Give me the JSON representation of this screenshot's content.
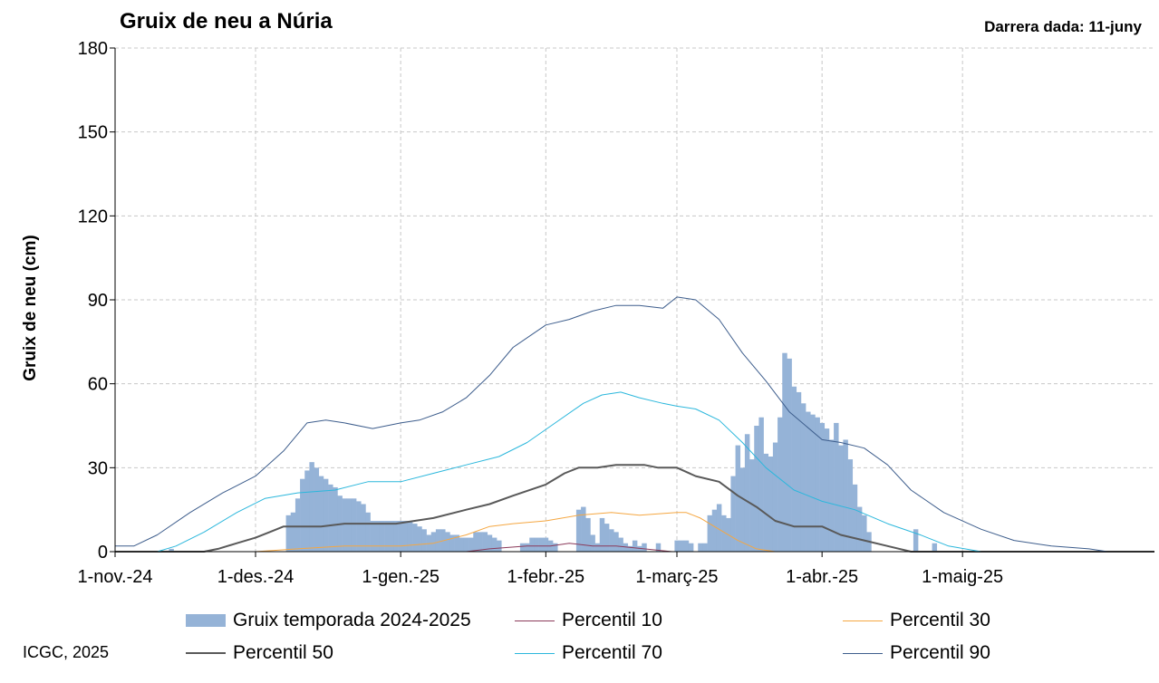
{
  "header": {
    "title": "Gruix de neu a Núria",
    "last_data": "Darrera dada: 11-juny"
  },
  "footer": {
    "credit": "ICGC, 2025"
  },
  "chart_data": {
    "type": "bar",
    "title": "Gruix de neu a Núria",
    "ylabel": "Gruix de neu (cm)",
    "xlabel": "",
    "ylim": [
      0,
      180
    ],
    "yticks": [
      0,
      30,
      60,
      90,
      120,
      150,
      180
    ],
    "xlim": [
      "2024-11-01",
      "2025-06-11"
    ],
    "xticks": [
      {
        "date": "2024-11-01",
        "label": "1-nov.-24"
      },
      {
        "date": "2024-12-01",
        "label": "1-des.-24"
      },
      {
        "date": "2025-01-01",
        "label": "1-gen.-25"
      },
      {
        "date": "2025-02-01",
        "label": "1-febr.-25"
      },
      {
        "date": "2025-03-01",
        "label": "1-març-25"
      },
      {
        "date": "2025-04-01",
        "label": "1-abr.-25"
      },
      {
        "date": "2025-05-01",
        "label": "1-maig-25"
      }
    ],
    "grid": true,
    "legend_position": "bottom",
    "colors": {
      "bars": "#95b3d7",
      "p10": "#8b3a5a",
      "p30": "#f5a742",
      "p50": "#595959",
      "p70": "#2bb7dc",
      "p90": "#3d5d8c"
    },
    "bars": {
      "name": "Gruix temporada 2024-2025",
      "points": [
        [
          "2024-11-13",
          1
        ],
        [
          "2024-12-08",
          13
        ],
        [
          "2024-12-09",
          14
        ],
        [
          "2024-12-10",
          19
        ],
        [
          "2024-12-11",
          26
        ],
        [
          "2024-12-12",
          29
        ],
        [
          "2024-12-13",
          32
        ],
        [
          "2024-12-14",
          30
        ],
        [
          "2024-12-15",
          27
        ],
        [
          "2024-12-16",
          26
        ],
        [
          "2024-12-17",
          24
        ],
        [
          "2024-12-18",
          23
        ],
        [
          "2024-12-19",
          20
        ],
        [
          "2024-12-20",
          19
        ],
        [
          "2024-12-21",
          19
        ],
        [
          "2024-12-22",
          19
        ],
        [
          "2024-12-23",
          18
        ],
        [
          "2024-12-24",
          17
        ],
        [
          "2024-12-25",
          14
        ],
        [
          "2024-12-26",
          11
        ],
        [
          "2024-12-27",
          11
        ],
        [
          "2024-12-28",
          11
        ],
        [
          "2024-12-29",
          11
        ],
        [
          "2024-12-30",
          11
        ],
        [
          "2024-12-31",
          11
        ],
        [
          "2025-01-01",
          11
        ],
        [
          "2025-01-02",
          11
        ],
        [
          "2025-01-03",
          11
        ],
        [
          "2025-01-04",
          10
        ],
        [
          "2025-01-05",
          9
        ],
        [
          "2025-01-06",
          8
        ],
        [
          "2025-01-07",
          6
        ],
        [
          "2025-01-08",
          7
        ],
        [
          "2025-01-09",
          8
        ],
        [
          "2025-01-10",
          8
        ],
        [
          "2025-01-11",
          7
        ],
        [
          "2025-01-12",
          6
        ],
        [
          "2025-01-13",
          6
        ],
        [
          "2025-01-14",
          5
        ],
        [
          "2025-01-15",
          5
        ],
        [
          "2025-01-16",
          5
        ],
        [
          "2025-01-17",
          7
        ],
        [
          "2025-01-18",
          7
        ],
        [
          "2025-01-19",
          7
        ],
        [
          "2025-01-20",
          6
        ],
        [
          "2025-01-21",
          5
        ],
        [
          "2025-01-22",
          4
        ],
        [
          "2025-01-27",
          3
        ],
        [
          "2025-01-28",
          3
        ],
        [
          "2025-01-29",
          5
        ],
        [
          "2025-01-30",
          5
        ],
        [
          "2025-01-31",
          5
        ],
        [
          "2025-02-01",
          5
        ],
        [
          "2025-02-02",
          4
        ],
        [
          "2025-02-03",
          3
        ],
        [
          "2025-02-08",
          15
        ],
        [
          "2025-02-09",
          16
        ],
        [
          "2025-02-10",
          12
        ],
        [
          "2025-02-11",
          6
        ],
        [
          "2025-02-12",
          3
        ],
        [
          "2025-02-13",
          12
        ],
        [
          "2025-02-14",
          10
        ],
        [
          "2025-02-15",
          8
        ],
        [
          "2025-02-16",
          7
        ],
        [
          "2025-02-17",
          5
        ],
        [
          "2025-02-18",
          3
        ],
        [
          "2025-02-19",
          2
        ],
        [
          "2025-02-20",
          4
        ],
        [
          "2025-02-21",
          2
        ],
        [
          "2025-02-22",
          3
        ],
        [
          "2025-02-25",
          3
        ],
        [
          "2025-03-01",
          4
        ],
        [
          "2025-03-02",
          4
        ],
        [
          "2025-03-03",
          4
        ],
        [
          "2025-03-04",
          3
        ],
        [
          "2025-03-06",
          3
        ],
        [
          "2025-03-07",
          3
        ],
        [
          "2025-03-08",
          13
        ],
        [
          "2025-03-09",
          15
        ],
        [
          "2025-03-10",
          17
        ],
        [
          "2025-03-11",
          13
        ],
        [
          "2025-03-12",
          12
        ],
        [
          "2025-03-13",
          27
        ],
        [
          "2025-03-14",
          38
        ],
        [
          "2025-03-15",
          30
        ],
        [
          "2025-03-16",
          42
        ],
        [
          "2025-03-17",
          33
        ],
        [
          "2025-03-18",
          45
        ],
        [
          "2025-03-19",
          48
        ],
        [
          "2025-03-20",
          35
        ],
        [
          "2025-03-21",
          34
        ],
        [
          "2025-03-22",
          39
        ],
        [
          "2025-03-23",
          48
        ],
        [
          "2025-03-24",
          71
        ],
        [
          "2025-03-25",
          69
        ],
        [
          "2025-03-26",
          59
        ],
        [
          "2025-03-27",
          57
        ],
        [
          "2025-03-28",
          53
        ],
        [
          "2025-03-29",
          50
        ],
        [
          "2025-03-30",
          49
        ],
        [
          "2025-03-31",
          48
        ],
        [
          "2025-04-01",
          46
        ],
        [
          "2025-04-02",
          44
        ],
        [
          "2025-04-03",
          40
        ],
        [
          "2025-04-04",
          46
        ],
        [
          "2025-04-05",
          38
        ],
        [
          "2025-04-06",
          40
        ],
        [
          "2025-04-07",
          33
        ],
        [
          "2025-04-08",
          24
        ],
        [
          "2025-04-09",
          16
        ],
        [
          "2025-04-10",
          13
        ],
        [
          "2025-04-11",
          7
        ],
        [
          "2025-04-21",
          8
        ],
        [
          "2025-04-25",
          3
        ]
      ]
    },
    "series": [
      {
        "name": "Percentil 10",
        "key": "p10",
        "points": [
          [
            "2024-11-01",
            0
          ],
          [
            "2025-01-15",
            0
          ],
          [
            "2025-01-20",
            1
          ],
          [
            "2025-01-28",
            2
          ],
          [
            "2025-02-02",
            2
          ],
          [
            "2025-02-06",
            3
          ],
          [
            "2025-02-11",
            2
          ],
          [
            "2025-02-16",
            2
          ],
          [
            "2025-02-22",
            1
          ],
          [
            "2025-02-28",
            0
          ],
          [
            "2025-06-11",
            0
          ]
        ]
      },
      {
        "name": "Percentil 30",
        "key": "p30",
        "points": [
          [
            "2024-11-01",
            0
          ],
          [
            "2024-12-01",
            0
          ],
          [
            "2024-12-10",
            1
          ],
          [
            "2024-12-20",
            2
          ],
          [
            "2025-01-01",
            2
          ],
          [
            "2025-01-08",
            3
          ],
          [
            "2025-01-15",
            6
          ],
          [
            "2025-01-20",
            9
          ],
          [
            "2025-01-25",
            10
          ],
          [
            "2025-02-01",
            11
          ],
          [
            "2025-02-08",
            13
          ],
          [
            "2025-02-15",
            14
          ],
          [
            "2025-02-21",
            13
          ],
          [
            "2025-03-01",
            14
          ],
          [
            "2025-03-03",
            14
          ],
          [
            "2025-03-06",
            12
          ],
          [
            "2025-03-10",
            8
          ],
          [
            "2025-03-14",
            4
          ],
          [
            "2025-03-18",
            1
          ],
          [
            "2025-03-22",
            0
          ],
          [
            "2025-06-11",
            0
          ]
        ]
      },
      {
        "name": "Percentil 50",
        "key": "p50",
        "points": [
          [
            "2024-11-01",
            0
          ],
          [
            "2024-11-20",
            0
          ],
          [
            "2024-11-23",
            1
          ],
          [
            "2024-11-27",
            3
          ],
          [
            "2024-12-01",
            5
          ],
          [
            "2024-12-04",
            7
          ],
          [
            "2024-12-07",
            9
          ],
          [
            "2024-12-15",
            9
          ],
          [
            "2024-12-20",
            10
          ],
          [
            "2024-12-31",
            10
          ],
          [
            "2025-01-08",
            12
          ],
          [
            "2025-01-15",
            15
          ],
          [
            "2025-01-20",
            17
          ],
          [
            "2025-01-25",
            20
          ],
          [
            "2025-02-01",
            24
          ],
          [
            "2025-02-05",
            28
          ],
          [
            "2025-02-08",
            30
          ],
          [
            "2025-02-12",
            30
          ],
          [
            "2025-02-16",
            31
          ],
          [
            "2025-02-22",
            31
          ],
          [
            "2025-02-25",
            30
          ],
          [
            "2025-03-01",
            30
          ],
          [
            "2025-03-05",
            27
          ],
          [
            "2025-03-10",
            25
          ],
          [
            "2025-03-14",
            20
          ],
          [
            "2025-03-18",
            16
          ],
          [
            "2025-03-22",
            11
          ],
          [
            "2025-03-26",
            9
          ],
          [
            "2025-04-01",
            9
          ],
          [
            "2025-04-05",
            6
          ],
          [
            "2025-04-10",
            4
          ],
          [
            "2025-04-15",
            2
          ],
          [
            "2025-04-20",
            0
          ],
          [
            "2025-06-11",
            0
          ]
        ]
      },
      {
        "name": "Percentil 70",
        "key": "p70",
        "points": [
          [
            "2024-11-01",
            0
          ],
          [
            "2024-11-10",
            0
          ],
          [
            "2024-11-14",
            2
          ],
          [
            "2024-11-20",
            7
          ],
          [
            "2024-11-27",
            14
          ],
          [
            "2024-12-03",
            19
          ],
          [
            "2024-12-10",
            21
          ],
          [
            "2024-12-18",
            22
          ],
          [
            "2024-12-25",
            25
          ],
          [
            "2025-01-01",
            25
          ],
          [
            "2025-01-08",
            28
          ],
          [
            "2025-01-15",
            31
          ],
          [
            "2025-01-22",
            34
          ],
          [
            "2025-01-28",
            39
          ],
          [
            "2025-02-03",
            46
          ],
          [
            "2025-02-09",
            53
          ],
          [
            "2025-02-13",
            56
          ],
          [
            "2025-02-17",
            57
          ],
          [
            "2025-02-21",
            55
          ],
          [
            "2025-02-26",
            53
          ],
          [
            "2025-03-01",
            52
          ],
          [
            "2025-03-05",
            51
          ],
          [
            "2025-03-10",
            47
          ],
          [
            "2025-03-15",
            39
          ],
          [
            "2025-03-20",
            30
          ],
          [
            "2025-03-26",
            22
          ],
          [
            "2025-04-01",
            18
          ],
          [
            "2025-04-08",
            15
          ],
          [
            "2025-04-15",
            10
          ],
          [
            "2025-04-22",
            6
          ],
          [
            "2025-04-28",
            2
          ],
          [
            "2025-05-05",
            0
          ],
          [
            "2025-06-11",
            0
          ]
        ]
      },
      {
        "name": "Percentil 90",
        "key": "p90",
        "points": [
          [
            "2024-11-01",
            2
          ],
          [
            "2024-11-05",
            2
          ],
          [
            "2024-11-10",
            6
          ],
          [
            "2024-11-17",
            14
          ],
          [
            "2024-11-24",
            21
          ],
          [
            "2024-12-01",
            27
          ],
          [
            "2024-12-07",
            36
          ],
          [
            "2024-12-12",
            46
          ],
          [
            "2024-12-16",
            47
          ],
          [
            "2024-12-20",
            46
          ],
          [
            "2024-12-26",
            44
          ],
          [
            "2025-01-01",
            46
          ],
          [
            "2025-01-05",
            47
          ],
          [
            "2025-01-10",
            50
          ],
          [
            "2025-01-15",
            55
          ],
          [
            "2025-01-20",
            63
          ],
          [
            "2025-01-25",
            73
          ],
          [
            "2025-02-01",
            81
          ],
          [
            "2025-02-06",
            83
          ],
          [
            "2025-02-11",
            86
          ],
          [
            "2025-02-16",
            88
          ],
          [
            "2025-02-21",
            88
          ],
          [
            "2025-02-26",
            87
          ],
          [
            "2025-03-01",
            91
          ],
          [
            "2025-03-05",
            90
          ],
          [
            "2025-03-10",
            83
          ],
          [
            "2025-03-15",
            71
          ],
          [
            "2025-03-20",
            61
          ],
          [
            "2025-03-25",
            50
          ],
          [
            "2025-04-01",
            40
          ],
          [
            "2025-04-05",
            39
          ],
          [
            "2025-04-10",
            37
          ],
          [
            "2025-04-15",
            31
          ],
          [
            "2025-04-20",
            22
          ],
          [
            "2025-04-27",
            14
          ],
          [
            "2025-05-05",
            8
          ],
          [
            "2025-05-12",
            4
          ],
          [
            "2025-05-20",
            2
          ],
          [
            "2025-05-28",
            1
          ],
          [
            "2025-06-01",
            0
          ],
          [
            "2025-06-11",
            0
          ]
        ]
      }
    ]
  }
}
